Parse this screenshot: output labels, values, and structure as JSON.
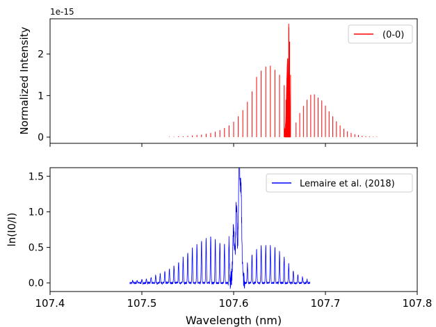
{
  "chart_data": [
    {
      "type": "line",
      "panel": "top",
      "ylabel": "Normalized Intensity",
      "offset_text": "1e-15",
      "xlim": [
        107.4,
        107.8
      ],
      "ylim": [
        -0.15,
        2.85
      ],
      "yticks": [
        0,
        1,
        2
      ],
      "ytick_labels": [
        "0",
        "1",
        "2"
      ],
      "xticks": [
        107.4,
        107.5,
        107.6,
        107.7,
        107.8
      ],
      "xtick_labels_shown": false,
      "grid": false,
      "legend": {
        "placement": "top-right",
        "entries": [
          "(0-0)"
        ]
      },
      "series": [
        {
          "name": "(0-0)",
          "color": "#ff0000",
          "style": "stick spectrum",
          "x": [
            107.53,
            107.535,
            107.54,
            107.545,
            107.55,
            107.555,
            107.56,
            107.565,
            107.57,
            107.575,
            107.58,
            107.585,
            107.59,
            107.595,
            107.6,
            107.605,
            107.61,
            107.615,
            107.62,
            107.625,
            107.63,
            107.635,
            107.64,
            107.645,
            107.65,
            107.655,
            107.657,
            107.658,
            107.659,
            107.66,
            107.661,
            107.662,
            107.668,
            107.672,
            107.676,
            107.68,
            107.684,
            107.688,
            107.692,
            107.696,
            107.7,
            107.704,
            107.708,
            107.712,
            107.716,
            107.72,
            107.724,
            107.728,
            107.732,
            107.736,
            107.74,
            107.744,
            107.748,
            107.752,
            107.756
          ],
          "y": [
            0.01,
            0.01,
            0.02,
            0.02,
            0.03,
            0.04,
            0.05,
            0.06,
            0.08,
            0.1,
            0.13,
            0.17,
            0.22,
            0.28,
            0.37,
            0.5,
            0.65,
            0.85,
            1.1,
            1.45,
            1.6,
            1.7,
            1.72,
            1.62,
            1.5,
            1.25,
            0.9,
            1.4,
            1.9,
            2.73,
            2.3,
            1.5,
            0.35,
            0.58,
            0.75,
            0.9,
            1.02,
            1.03,
            0.95,
            0.88,
            0.76,
            0.62,
            0.5,
            0.38,
            0.28,
            0.2,
            0.14,
            0.1,
            0.07,
            0.05,
            0.03,
            0.02,
            0.015,
            0.01,
            0.01
          ]
        }
      ]
    },
    {
      "type": "line",
      "panel": "bottom",
      "xlabel": "Wavelength (nm)",
      "ylabel": "ln(I0/I)",
      "xlim": [
        107.4,
        107.8
      ],
      "ylim": [
        -0.12,
        1.62
      ],
      "yticks": [
        0.0,
        0.5,
        1.0,
        1.5
      ],
      "ytick_labels": [
        "0.0",
        "0.5",
        "1.0",
        "1.5"
      ],
      "xticks": [
        107.4,
        107.5,
        107.6,
        107.7,
        107.8
      ],
      "xtick_labels": [
        "107.4",
        "107.5",
        "107.6",
        "107.7",
        "107.8"
      ],
      "grid": false,
      "legend": {
        "placement": "top-right",
        "entries": [
          "Lemaire et al. (2018)"
        ]
      },
      "series": [
        {
          "name": "Lemaire et al. (2018)",
          "color": "#0000ff",
          "style": "continuous spectrum",
          "x_range": [
            107.487,
            107.683
          ],
          "baseline": 0.0,
          "peaks_x": [
            107.49,
            107.495,
            107.5,
            107.505,
            107.51,
            107.515,
            107.52,
            107.525,
            107.53,
            107.535,
            107.54,
            107.545,
            107.55,
            107.555,
            107.56,
            107.565,
            107.57,
            107.575,
            107.58,
            107.585,
            107.59,
            107.595,
            107.6,
            107.603,
            107.606,
            107.608,
            107.615,
            107.62,
            107.625,
            107.63,
            107.635,
            107.64,
            107.645,
            107.65,
            107.655,
            107.66,
            107.665,
            107.67,
            107.675,
            107.68
          ],
          "peaks_y": [
            0.03,
            0.04,
            0.05,
            0.06,
            0.08,
            0.1,
            0.13,
            0.16,
            0.2,
            0.25,
            0.3,
            0.37,
            0.43,
            0.5,
            0.55,
            0.6,
            0.63,
            0.66,
            0.63,
            0.57,
            0.55,
            0.6,
            0.75,
            1.05,
            1.55,
            1.2,
            0.28,
            0.4,
            0.48,
            0.53,
            0.54,
            0.53,
            0.5,
            0.45,
            0.36,
            0.27,
            0.17,
            0.12,
            0.08,
            0.05
          ]
        }
      ]
    }
  ]
}
